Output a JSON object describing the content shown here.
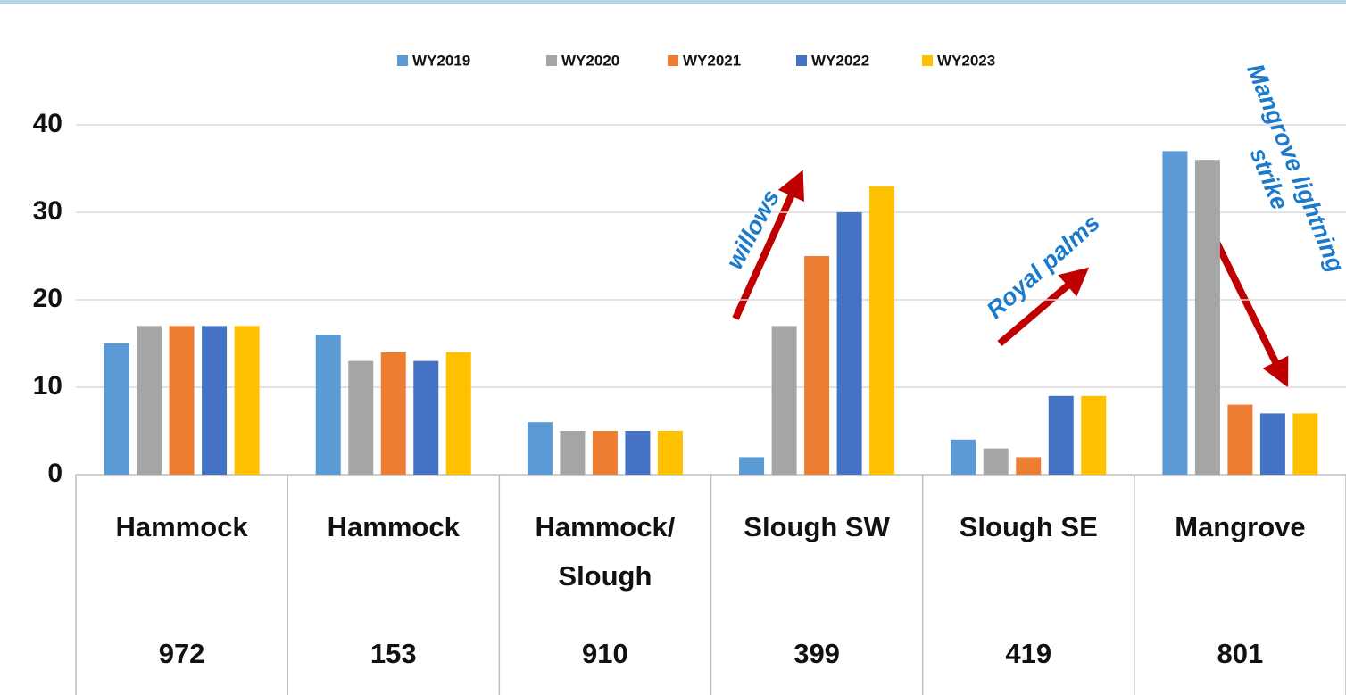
{
  "chart_data": {
    "type": "bar",
    "categories": [
      [
        "Hammock"
      ],
      [
        "Hammock"
      ],
      [
        "Hammock/",
        "Slough"
      ],
      [
        "Slough SW"
      ],
      [
        "Slough SE"
      ],
      [
        "Mangrove"
      ]
    ],
    "sites": [
      "972",
      "153",
      "910",
      "399",
      "419",
      "801"
    ],
    "series": [
      {
        "name": "WY2019",
        "color": "#5b9bd5",
        "values": [
          15,
          16,
          6,
          2,
          4,
          37
        ]
      },
      {
        "name": "WY2020",
        "color": "#a5a5a5",
        "values": [
          17,
          13,
          5,
          17,
          3,
          36
        ]
      },
      {
        "name": "WY2021",
        "color": "#ed7d31",
        "values": [
          17,
          14,
          5,
          25,
          2,
          8
        ]
      },
      {
        "name": "WY2022",
        "color": "#4472c4",
        "values": [
          17,
          13,
          5,
          30,
          9,
          7
        ]
      },
      {
        "name": "WY2023",
        "color": "#ffc000",
        "values": [
          17,
          14,
          5,
          33,
          9,
          7
        ]
      }
    ],
    "ylim": [
      0,
      40
    ],
    "yticks": [
      0,
      10,
      20,
      30,
      40
    ],
    "grid": true,
    "annotations": [
      [
        "willows"
      ],
      [
        "Royal palms"
      ],
      [
        "Mangrove lightning",
        "strike"
      ]
    ]
  }
}
